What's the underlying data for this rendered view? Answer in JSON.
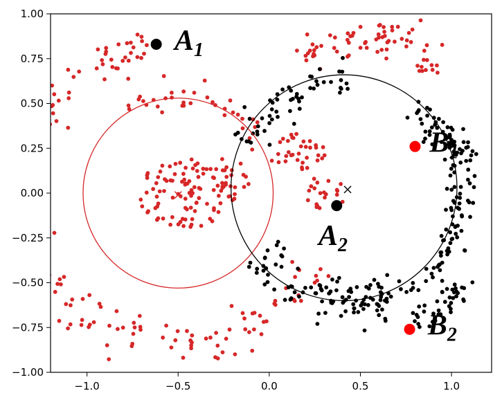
{
  "chart_data": {
    "type": "scatter",
    "title": "",
    "xlabel": "",
    "ylabel": "",
    "xlim": [
      -1.2,
      1.22
    ],
    "ylim": [
      -1.0,
      1.0
    ],
    "grid": false,
    "x_ticks": [
      -1.0,
      -0.5,
      0.0,
      0.5,
      1.0
    ],
    "x_tick_labels": [
      "−1.0",
      "−0.5",
      "0.0",
      "0.5",
      "1.0"
    ],
    "y_ticks": [
      1.0,
      0.75,
      0.5,
      0.25,
      0.0,
      -0.25,
      -0.5,
      -0.75,
      -1.0
    ],
    "y_tick_labels": [
      "1.00",
      "0.75",
      "0.50",
      "0.25",
      "0.00",
      "−0.25",
      "−0.50",
      "−0.75",
      "−1.00"
    ],
    "colors": {
      "red": "#d62728",
      "black": "#000000",
      "highlight_red": "#ff0000"
    },
    "clusters": [
      {
        "color": "red",
        "parts": [
          {
            "kind": "arc",
            "cx": -0.5,
            "cy": 0.0,
            "r": 0.85,
            "deg_from": 98,
            "deg_to": 120,
            "n": 26,
            "spread": 0.05
          },
          {
            "kind": "arc",
            "cx": -0.5,
            "cy": 0.0,
            "r": 0.85,
            "deg_from": 122,
            "deg_to": 200,
            "n": 55,
            "spread": 0.06
          },
          {
            "kind": "arc",
            "cx": -0.5,
            "cy": 0.0,
            "r": 0.85,
            "deg_from": 205,
            "deg_to": 305,
            "n": 80,
            "spread": 0.07
          },
          {
            "kind": "arc",
            "cx": -0.5,
            "cy": 0.0,
            "r": 0.85,
            "deg_from": 310,
            "deg_to": 332,
            "n": 16,
            "spread": 0.05
          },
          {
            "kind": "arc",
            "cx": -0.5,
            "cy": 0.0,
            "r": 0.55,
            "deg_from": 30,
            "deg_to": 120,
            "n": 36,
            "spread": 0.05
          },
          {
            "kind": "blob",
            "cx": -0.45,
            "cy": 0.0,
            "rx": 0.27,
            "ry": 0.2,
            "n": 95
          },
          {
            "kind": "blob",
            "cx": -0.22,
            "cy": 0.08,
            "rx": 0.12,
            "ry": 0.12,
            "n": 22
          },
          {
            "kind": "blob",
            "cx": 0.15,
            "cy": 0.23,
            "rx": 0.16,
            "ry": 0.1,
            "n": 34
          },
          {
            "kind": "blob",
            "cx": 0.32,
            "cy": 0.0,
            "rx": 0.12,
            "ry": 0.12,
            "n": 22
          },
          {
            "kind": "arc",
            "cx": 0.55,
            "cy": 0.35,
            "r": 0.53,
            "deg_from": 45,
            "deg_to": 135,
            "n": 62,
            "spread": 0.045
          },
          {
            "kind": "blob",
            "cx": 0.87,
            "cy": 0.7,
            "rx": 0.07,
            "ry": 0.06,
            "n": 10
          }
        ]
      },
      {
        "color": "black",
        "parts": [
          {
            "kind": "arc",
            "cx": 0.4,
            "cy": 0.0,
            "r": 0.65,
            "deg_from": -40,
            "deg_to": 38,
            "n": 90,
            "spread": 0.04
          },
          {
            "kind": "arc",
            "cx": 0.4,
            "cy": -0.3,
            "r": 0.85,
            "deg_from": 35,
            "deg_to": 65,
            "n": 38,
            "spread": 0.04
          },
          {
            "kind": "arc",
            "cx": 0.4,
            "cy": 0.0,
            "r": 0.6,
            "deg_from": 85,
            "deg_to": 130,
            "n": 38,
            "spread": 0.05
          },
          {
            "kind": "arc",
            "cx": 0.4,
            "cy": 0.0,
            "r": 0.6,
            "deg_from": 130,
            "deg_to": 152,
            "n": 18,
            "spread": 0.05
          },
          {
            "kind": "arc",
            "cx": 0.43,
            "cy": -0.05,
            "r": 0.55,
            "deg_from": 210,
            "deg_to": 300,
            "n": 90,
            "spread": 0.06
          },
          {
            "kind": "arc",
            "cx": 0.6,
            "cy": -0.2,
            "r": 0.55,
            "deg_from": 290,
            "deg_to": 330,
            "n": 40,
            "spread": 0.04
          },
          {
            "kind": "arc",
            "cx": 0.4,
            "cy": 0.0,
            "r": 0.65,
            "deg_from": -90,
            "deg_to": -40,
            "n": 30,
            "spread": 0.04
          }
        ]
      }
    ],
    "circles": [
      {
        "name": "red-circle",
        "cx": -0.5,
        "cy": 0.0,
        "r": 0.53,
        "color": "red"
      },
      {
        "name": "black-circle",
        "cx": 0.41,
        "cy": 0.03,
        "r": 0.63,
        "color": "black"
      }
    ],
    "centroids": [
      {
        "name": "red-centroid",
        "x": -0.5,
        "y": -0.01,
        "color": "red"
      },
      {
        "name": "black-centroid",
        "x": 0.43,
        "y": 0.02,
        "color": "black"
      }
    ],
    "labeled_points": [
      {
        "name": "A1",
        "base": "A",
        "sub": "1",
        "x": -0.62,
        "y": 0.83,
        "color": "black",
        "label_dx": 0.1,
        "label_dy": -0.03
      },
      {
        "name": "A2",
        "base": "A",
        "sub": "2",
        "x": 0.37,
        "y": -0.07,
        "color": "black",
        "label_dx": -0.1,
        "label_dy": -0.22
      },
      {
        "name": "B1",
        "base": "B",
        "sub": "1",
        "x": 0.8,
        "y": 0.26,
        "color": "highlight_red",
        "label_dx": 0.08,
        "label_dy": -0.03
      },
      {
        "name": "B2",
        "base": "B",
        "sub": "2",
        "x": 0.77,
        "y": -0.76,
        "color": "highlight_red",
        "label_dx": 0.1,
        "label_dy": -0.03
      }
    ]
  }
}
